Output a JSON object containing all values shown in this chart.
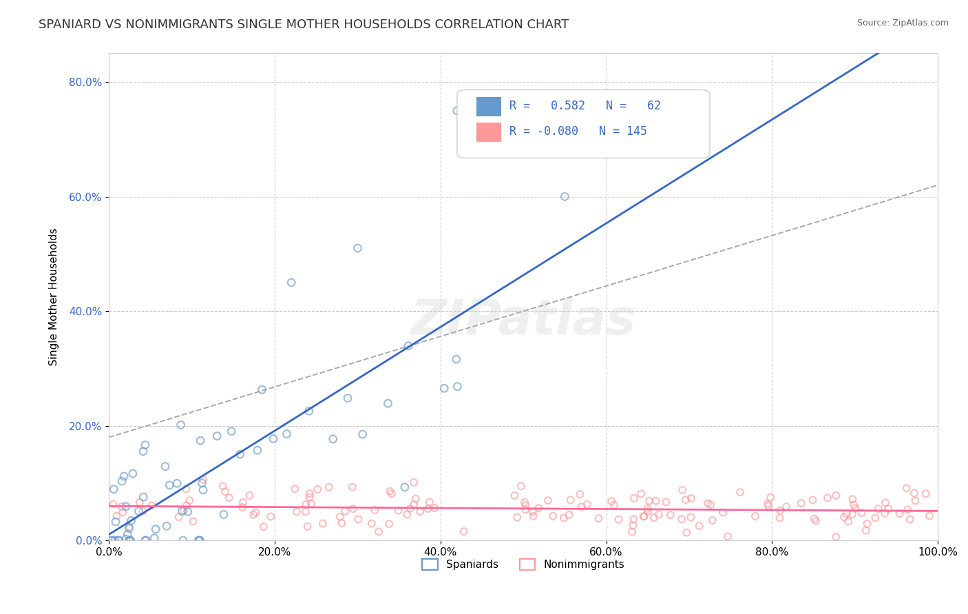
{
  "title": "SPANIARD VS NONIMMIGRANTS SINGLE MOTHER HOUSEHOLDS CORRELATION CHART",
  "source": "Source: ZipAtlas.com",
  "xlabel": "",
  "ylabel": "Single Mother Households",
  "xmin": 0.0,
  "xmax": 1.0,
  "ymin": 0.0,
  "ymax": 0.85,
  "yticks": [
    0.0,
    0.2,
    0.4,
    0.6,
    0.8
  ],
  "ytick_labels": [
    "0.0%",
    "20.0%",
    "40.0%",
    "60.0%",
    "80.0%"
  ],
  "xticks": [
    0.0,
    0.2,
    0.4,
    0.6,
    0.8,
    1.0
  ],
  "xtick_labels": [
    "0.0%",
    "20.0%",
    "40.0%",
    "60.0%",
    "80.0%",
    "100.0%"
  ],
  "spaniard_color": "#6699CC",
  "nonimmigrant_color": "#FF9999",
  "spaniard_R": 0.582,
  "spaniard_N": 62,
  "nonimmigrant_R": -0.08,
  "nonimmigrant_N": 145,
  "legend_label_1": "Spaniards",
  "legend_label_2": "Nonimmigrants",
  "spaniard_line_color": "#3366CC",
  "nonimmigrant_line_color": "#FF6699",
  "watermark": "ZIPatlas",
  "background_color": "#FFFFFF",
  "title_fontsize": 13,
  "label_fontsize": 11,
  "tick_fontsize": 11
}
